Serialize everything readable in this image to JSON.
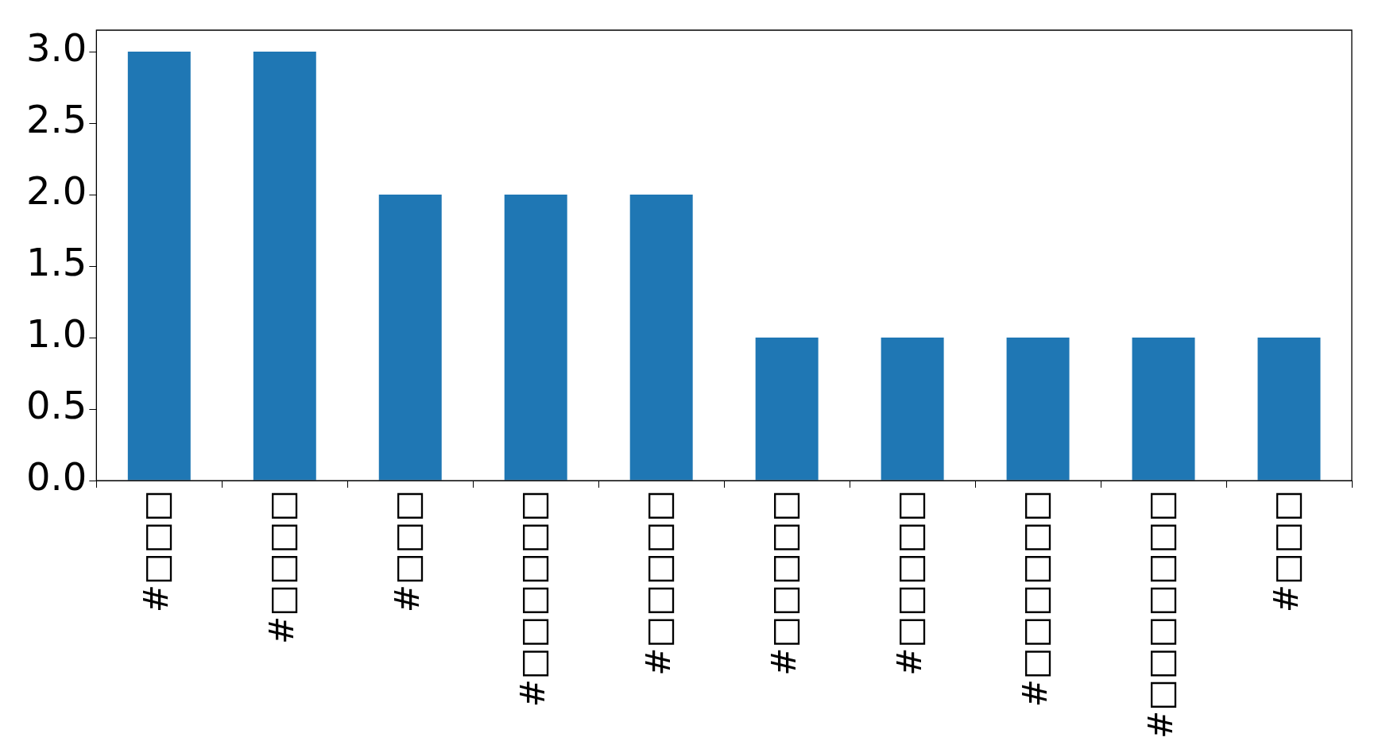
{
  "chart_data": {
    "type": "bar",
    "categories": [
      "#□□□",
      "#□□□□",
      "#□□□",
      "#□□□□□□",
      "#□□□□□",
      "#□□□□□",
      "#□□□□□",
      "#□□□□□□",
      "#□□□□□□□",
      "#□□□"
    ],
    "values": [
      3,
      3,
      2,
      2,
      2,
      1,
      1,
      1,
      1,
      1
    ],
    "color": "#1f77b4",
    "ylim": [
      0,
      3.15
    ],
    "yticks": [
      {
        "value": 0,
        "label": "0.0"
      },
      {
        "value": 0.5,
        "label": "0.5"
      },
      {
        "value": 1,
        "label": "1.0"
      },
      {
        "value": 1.5,
        "label": "1.5"
      },
      {
        "value": 2,
        "label": "2.0"
      },
      {
        "value": 2.5,
        "label": "2.5"
      },
      {
        "value": 3,
        "label": "3.0"
      }
    ],
    "grid": false,
    "legend": false
  }
}
